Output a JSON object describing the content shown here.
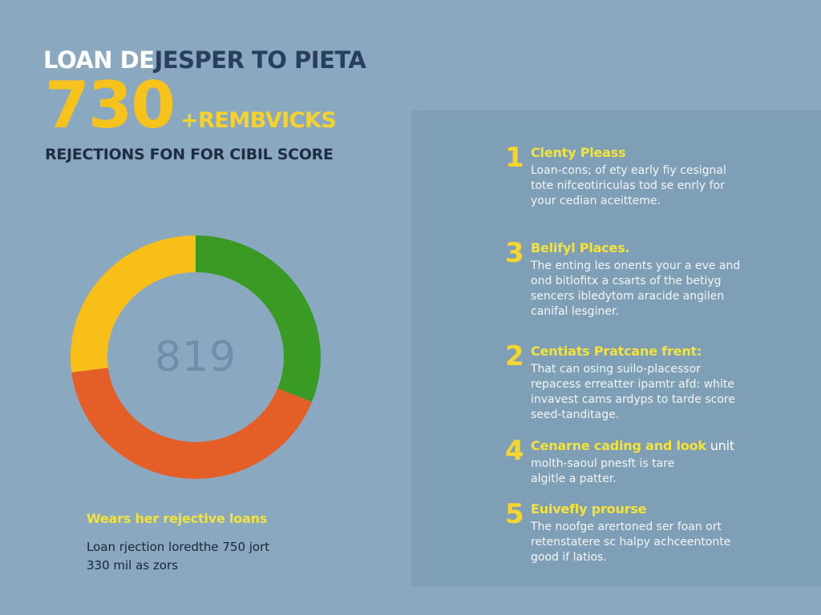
{
  "header": {
    "title_white": "LOAN DE",
    "title_dark": "JESPER TO PIETA",
    "big_number": "730",
    "big_suffix": "+REMBVICKS",
    "subtitle": "REJECTIONS FON FOR CIBIL SCORE"
  },
  "colors": {
    "background": "#8aa9c1",
    "panel": "#7f9fb7",
    "accent_yellow": "#f6c21c",
    "heading_yellow": "#f3e33a",
    "dark_text": "#1f2d42",
    "donut_yellow": "#f7bf18",
    "donut_green": "#3a9b24",
    "donut_orange": "#e45f28"
  },
  "chart_data": {
    "type": "pie",
    "title": "",
    "center_label": "819",
    "categories": [
      "Green",
      "Orange",
      "Yellow"
    ],
    "values": [
      31,
      42,
      27
    ],
    "colors": [
      "#3a9b24",
      "#e45f28",
      "#f7bf18"
    ],
    "donut": true
  },
  "left_section": {
    "heading": "Wears her rejective loans",
    "body_lines": [
      "Loan rjection loredthe 750 jort",
      "330 mil as zors"
    ]
  },
  "tips": [
    {
      "number": "1",
      "title": "Clenty Pleass",
      "title_extra": "",
      "lines": [
        "Loan-cons; of ety early fiy cesignal",
        "tote nifceotiriculas tod se enrly for",
        "your cedian aceitteme."
      ]
    },
    {
      "number": "3",
      "title": "Belifyl Places.",
      "title_extra": "",
      "lines": [
        "The enting les onents your a eve and",
        "ond bitlofitx a csarts of the betiyg",
        "sencers ibledytom aracide angilen",
        "canifal lesginer."
      ]
    },
    {
      "number": "2",
      "title": "Centiats Pratcane frent:",
      "title_extra": "",
      "lines": [
        "That can osing suilo-placessor",
        "repacess erreatter ipamtr afd: white",
        "invavest cams ardyps to tarde score",
        "seed-tanditage."
      ]
    },
    {
      "number": "4",
      "title": "Cenarne cading and look",
      "title_extra": " unit",
      "lines": [
        "molth-saoul pnesft is tare",
        "algitle a patter."
      ]
    },
    {
      "number": "5",
      "title": "Euivefly prourse",
      "title_extra": "",
      "lines": [
        "The noofge arertoned ser foan ort",
        "retenstatere sc halpy achceentonte",
        "good if latios."
      ]
    }
  ]
}
